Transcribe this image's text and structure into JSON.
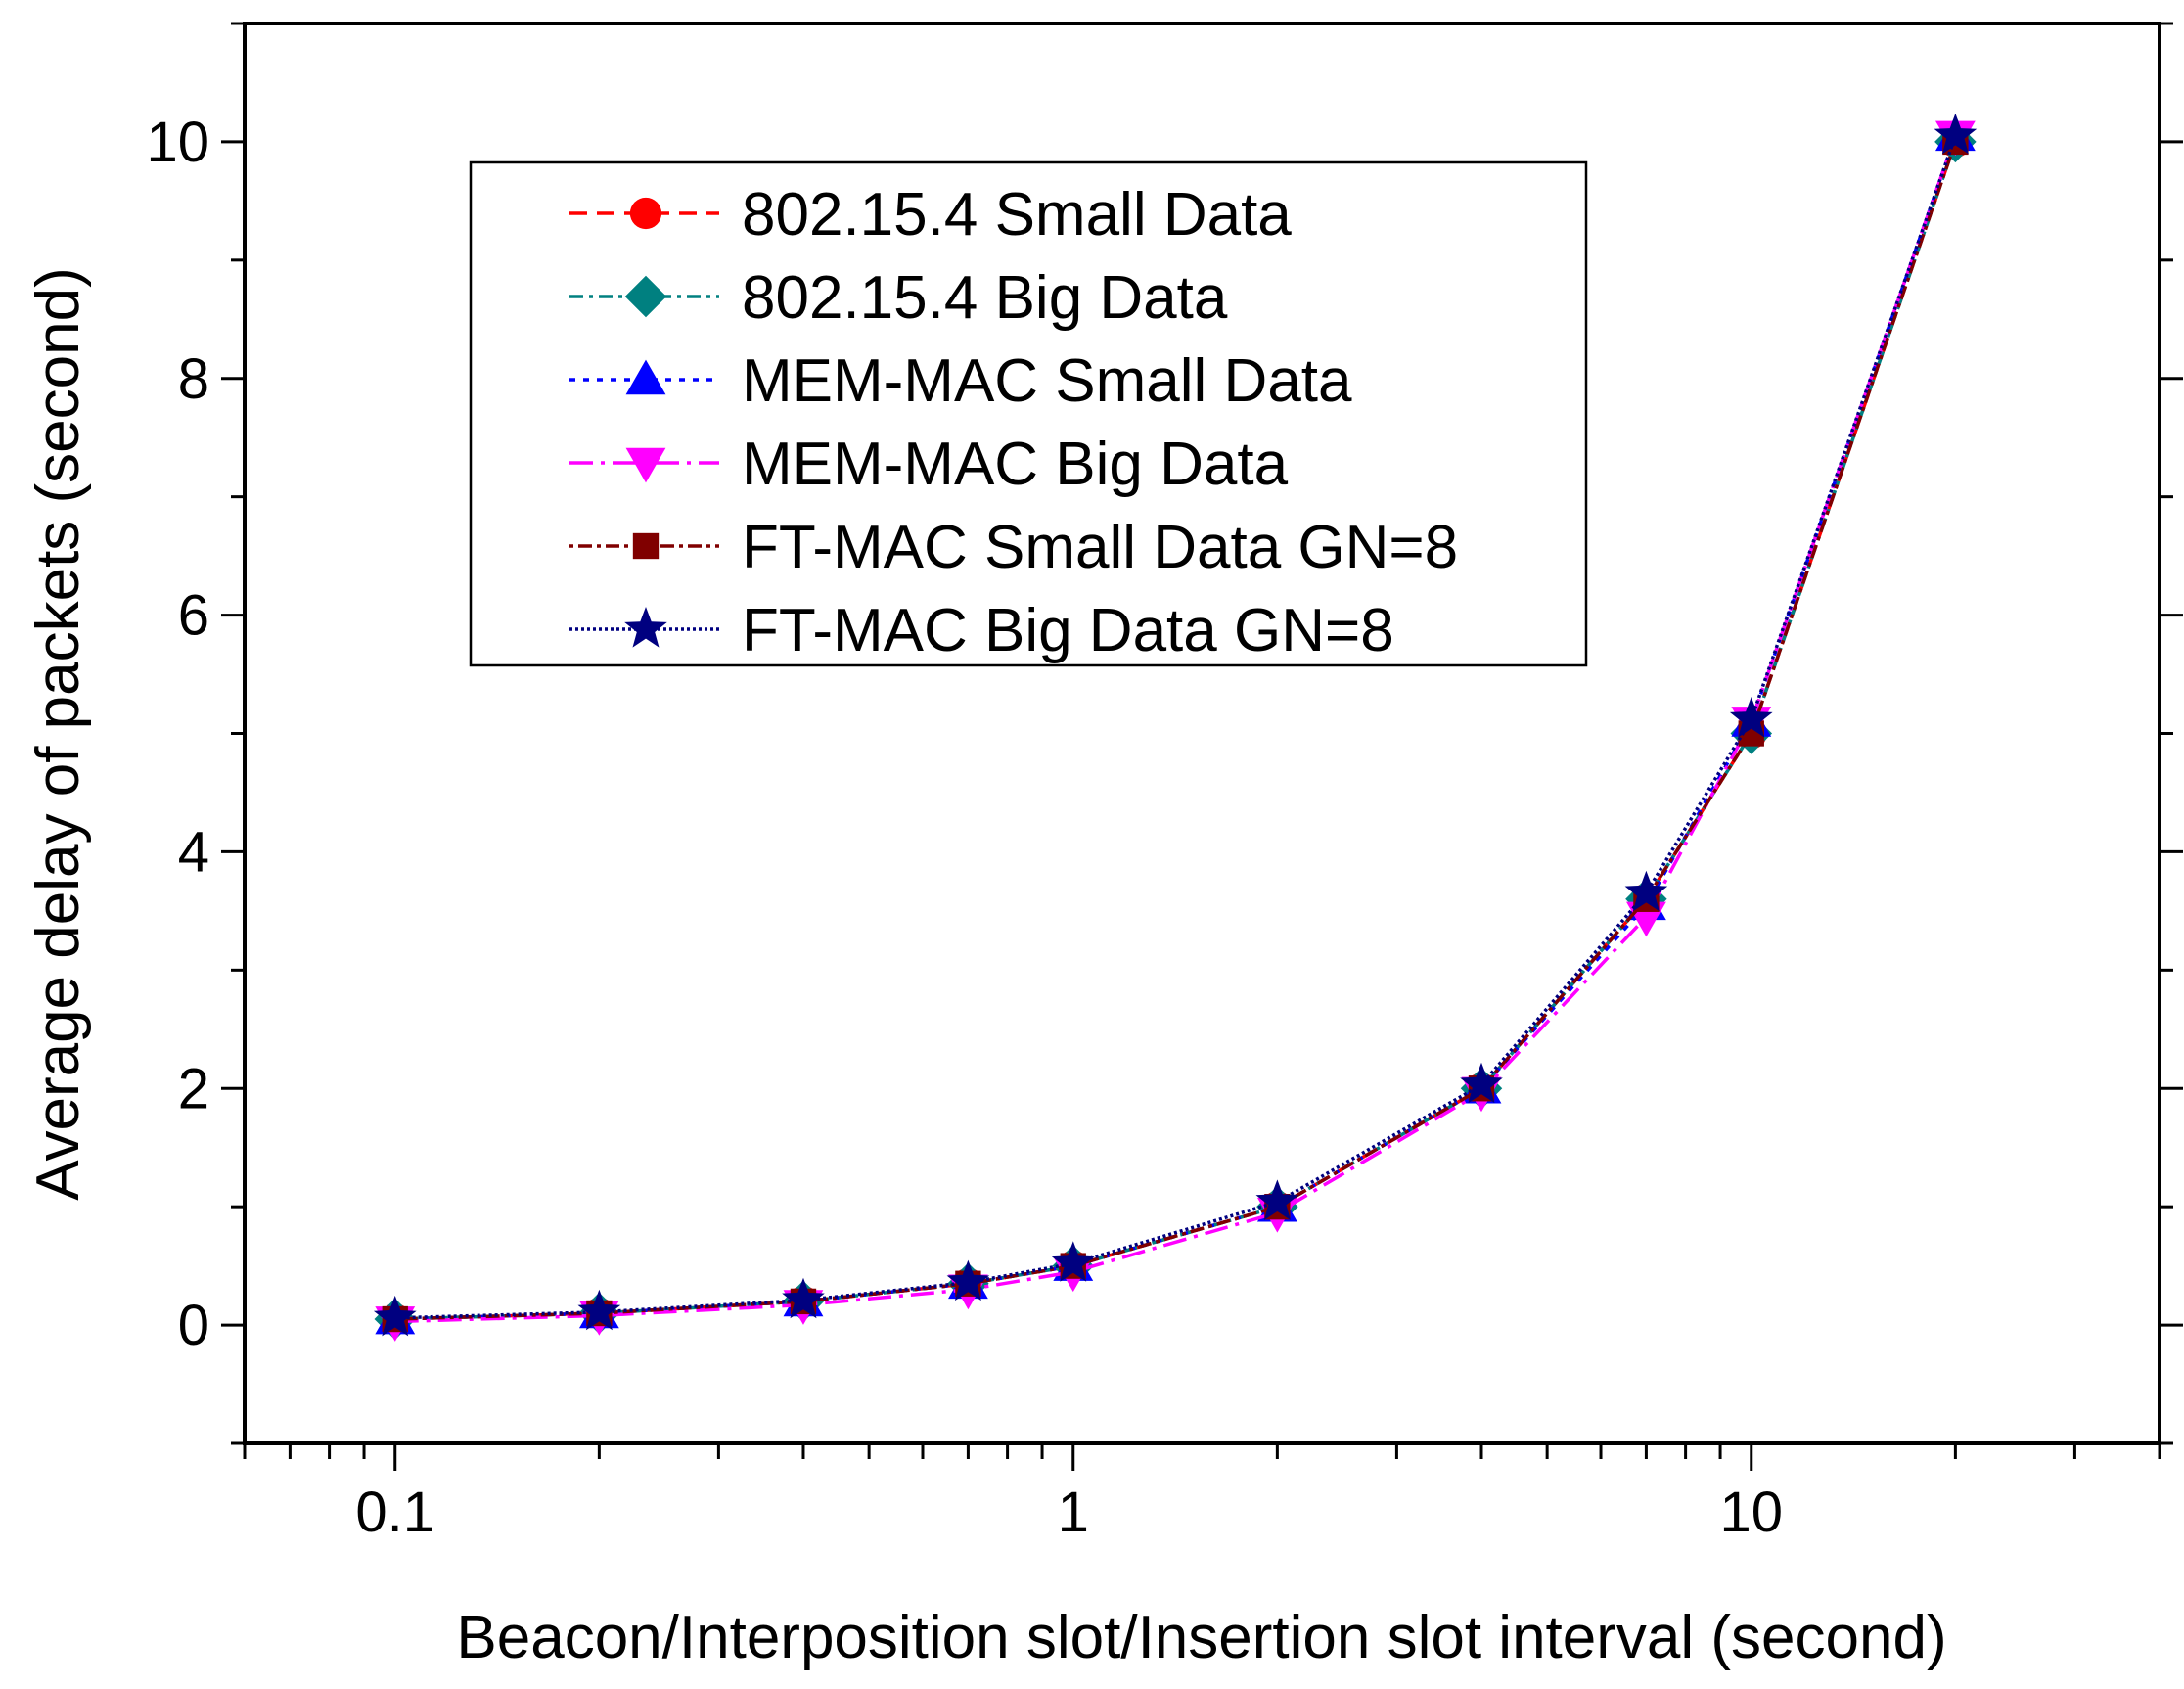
{
  "chart_data": {
    "type": "line",
    "title": "",
    "xlabel": "Beacon/Interposition slot/Insertion slot interval (second)",
    "ylabel": "Average delay of packets (second)",
    "x_scale": "log",
    "xlim": [
      0.06,
      40
    ],
    "ylim": [
      -1,
      11
    ],
    "grid": false,
    "legend_position": "upper-left",
    "x_ticks": [
      {
        "value": 0.1,
        "label": "0.1"
      },
      {
        "value": 1,
        "label": "1"
      },
      {
        "value": 10,
        "label": "10"
      }
    ],
    "y_ticks": [
      {
        "value": 0,
        "label": "0"
      },
      {
        "value": 2,
        "label": "2"
      },
      {
        "value": 4,
        "label": "4"
      },
      {
        "value": 6,
        "label": "6"
      },
      {
        "value": 8,
        "label": "8"
      },
      {
        "value": 10,
        "label": "10"
      }
    ],
    "x": [
      0.1,
      0.2,
      0.4,
      0.7,
      1,
      2,
      4,
      7,
      10,
      20
    ],
    "series": [
      {
        "name": "802.15.4 Small Data",
        "color": "#ff0000",
        "marker": "circle",
        "dash": "18,10",
        "values": [
          0.05,
          0.1,
          0.2,
          0.35,
          0.5,
          1.0,
          2.0,
          3.6,
          5.0,
          10.0
        ]
      },
      {
        "name": "802.15.4 Big Data",
        "color": "#008080",
        "marker": "diamond",
        "dash": "14,6,4,6",
        "values": [
          0.05,
          0.1,
          0.2,
          0.35,
          0.5,
          1.0,
          2.0,
          3.6,
          5.0,
          10.0
        ]
      },
      {
        "name": "MEM-MAC Small Data",
        "color": "#0000ff",
        "marker": "triangle-up",
        "dash": "6,8",
        "values": [
          0.05,
          0.1,
          0.2,
          0.35,
          0.5,
          1.0,
          2.0,
          3.55,
          5.1,
          10.05
        ]
      },
      {
        "name": "MEM-MAC Big Data",
        "color": "#ff00ff",
        "marker": "triangle-down",
        "dash": "24,8,4,8",
        "values": [
          0.03,
          0.08,
          0.17,
          0.3,
          0.45,
          0.95,
          1.97,
          3.45,
          5.1,
          10.05
        ]
      },
      {
        "name": "FT-MAC Small Data GN=8",
        "color": "#800000",
        "marker": "square",
        "dash": "4,5,14,5",
        "values": [
          0.05,
          0.1,
          0.2,
          0.35,
          0.5,
          1.0,
          2.0,
          3.6,
          5.0,
          10.0
        ]
      },
      {
        "name": "FT-MAC Big Data GN=8",
        "color": "#000080",
        "marker": "star",
        "dash": "3,3",
        "values": [
          0.06,
          0.11,
          0.21,
          0.36,
          0.52,
          1.04,
          2.03,
          3.65,
          5.12,
          10.05
        ]
      }
    ]
  }
}
